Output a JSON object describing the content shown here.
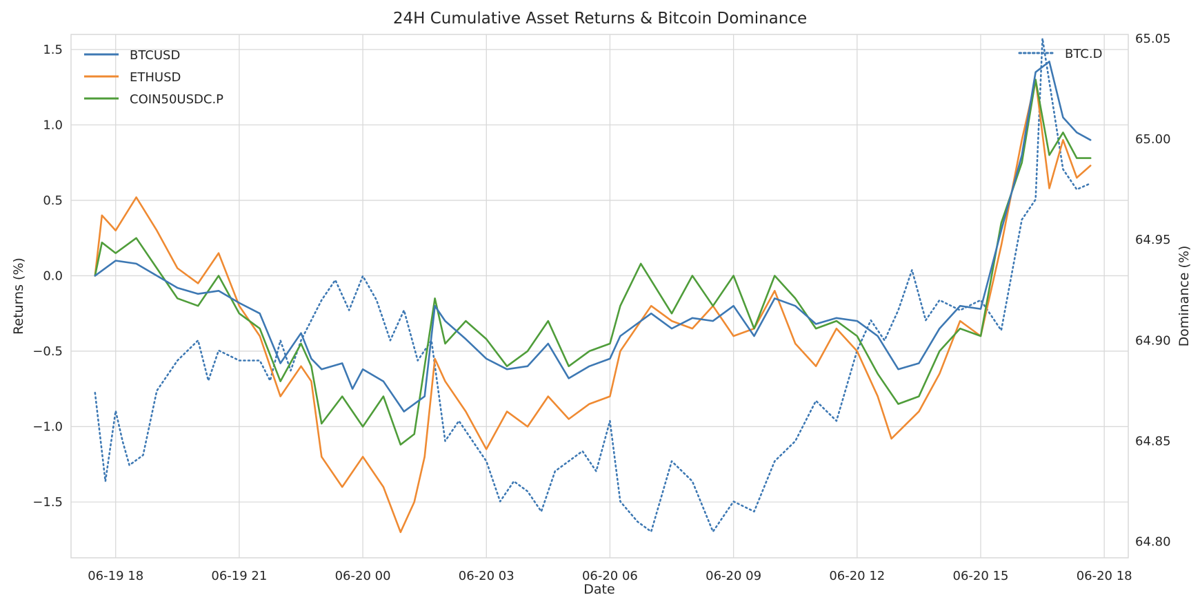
{
  "chart_data": {
    "type": "line",
    "title": "24H Cumulative Asset Returns & Bitcoin Dominance",
    "xlabel": "Date",
    "ylabel": "Returns (%)",
    "y2label": "Dominance (%)",
    "grid": true,
    "x_ticks": [
      "06-19 18",
      "06-19 21",
      "06-20 00",
      "06-20 03",
      "06-20 06",
      "06-20 09",
      "06-20 12",
      "06-20 15",
      "06-20 18"
    ],
    "x_range": [
      "06-19 16:55",
      "06-20 18:35"
    ],
    "ylim": [
      -1.87,
      1.6
    ],
    "y_ticks": [
      -1.5,
      -1.0,
      -0.5,
      0.0,
      0.5,
      1.0,
      1.5
    ],
    "y2lim": [
      64.792,
      65.052
    ],
    "y2_ticks": [
      64.8,
      64.85,
      64.9,
      64.95,
      65.0,
      65.05
    ],
    "legend_left": "top-left",
    "legend_right": "top-right",
    "series": [
      {
        "name": "BTCUSD",
        "axis": "left",
        "style": "solid",
        "color": "#3d78b3",
        "points": [
          [
            "06-19 17:30",
            0.0
          ],
          [
            "06-19 18:00",
            0.1
          ],
          [
            "06-19 18:30",
            0.08
          ],
          [
            "06-19 19:00",
            0.0
          ],
          [
            "06-19 19:30",
            -0.08
          ],
          [
            "06-19 20:00",
            -0.12
          ],
          [
            "06-19 20:30",
            -0.1
          ],
          [
            "06-19 21:00",
            -0.18
          ],
          [
            "06-19 21:30",
            -0.25
          ],
          [
            "06-19 22:00",
            -0.58
          ],
          [
            "06-19 22:30",
            -0.38
          ],
          [
            "06-19 22:45",
            -0.55
          ],
          [
            "06-19 23:00",
            -0.62
          ],
          [
            "06-19 23:30",
            -0.58
          ],
          [
            "06-19 23:45",
            -0.75
          ],
          [
            "06-20 00:00",
            -0.62
          ],
          [
            "06-20 00:30",
            -0.7
          ],
          [
            "06-20 01:00",
            -0.9
          ],
          [
            "06-20 01:30",
            -0.8
          ],
          [
            "06-20 01:45",
            -0.2
          ],
          [
            "06-20 02:00",
            -0.3
          ],
          [
            "06-20 02:30",
            -0.42
          ],
          [
            "06-20 03:00",
            -0.55
          ],
          [
            "06-20 03:30",
            -0.62
          ],
          [
            "06-20 04:00",
            -0.6
          ],
          [
            "06-20 04:30",
            -0.45
          ],
          [
            "06-20 05:00",
            -0.68
          ],
          [
            "06-20 05:30",
            -0.6
          ],
          [
            "06-20 06:00",
            -0.55
          ],
          [
            "06-20 06:15",
            -0.4
          ],
          [
            "06-20 07:00",
            -0.25
          ],
          [
            "06-20 07:30",
            -0.35
          ],
          [
            "06-20 08:00",
            -0.28
          ],
          [
            "06-20 08:30",
            -0.3
          ],
          [
            "06-20 09:00",
            -0.2
          ],
          [
            "06-20 09:30",
            -0.4
          ],
          [
            "06-20 10:00",
            -0.15
          ],
          [
            "06-20 10:30",
            -0.2
          ],
          [
            "06-20 11:00",
            -0.32
          ],
          [
            "06-20 11:30",
            -0.28
          ],
          [
            "06-20 12:00",
            -0.3
          ],
          [
            "06-20 12:30",
            -0.4
          ],
          [
            "06-20 13:00",
            -0.62
          ],
          [
            "06-20 13:30",
            -0.58
          ],
          [
            "06-20 14:00",
            -0.35
          ],
          [
            "06-20 14:30",
            -0.2
          ],
          [
            "06-20 15:00",
            -0.22
          ],
          [
            "06-20 15:30",
            0.3
          ],
          [
            "06-20 16:00",
            0.8
          ],
          [
            "06-20 16:20",
            1.35
          ],
          [
            "06-20 16:40",
            1.42
          ],
          [
            "06-20 17:00",
            1.05
          ],
          [
            "06-20 17:20",
            0.95
          ],
          [
            "06-20 17:40",
            0.9
          ]
        ]
      },
      {
        "name": "ETHUSD",
        "axis": "left",
        "style": "solid",
        "color": "#ef8a32",
        "points": [
          [
            "06-19 17:30",
            0.0
          ],
          [
            "06-19 17:40",
            0.4
          ],
          [
            "06-19 18:00",
            0.3
          ],
          [
            "06-19 18:30",
            0.52
          ],
          [
            "06-19 19:00",
            0.3
          ],
          [
            "06-19 19:30",
            0.05
          ],
          [
            "06-19 20:00",
            -0.05
          ],
          [
            "06-19 20:30",
            0.15
          ],
          [
            "06-19 21:00",
            -0.2
          ],
          [
            "06-19 21:30",
            -0.4
          ],
          [
            "06-19 22:00",
            -0.8
          ],
          [
            "06-19 22:30",
            -0.6
          ],
          [
            "06-19 22:45",
            -0.7
          ],
          [
            "06-19 23:00",
            -1.2
          ],
          [
            "06-19 23:30",
            -1.4
          ],
          [
            "06-20 00:00",
            -1.2
          ],
          [
            "06-20 00:30",
            -1.4
          ],
          [
            "06-20 00:55",
            -1.7
          ],
          [
            "06-20 01:15",
            -1.5
          ],
          [
            "06-20 01:30",
            -1.2
          ],
          [
            "06-20 01:45",
            -0.55
          ],
          [
            "06-20 02:00",
            -0.7
          ],
          [
            "06-20 02:30",
            -0.9
          ],
          [
            "06-20 03:00",
            -1.15
          ],
          [
            "06-20 03:30",
            -0.9
          ],
          [
            "06-20 04:00",
            -1.0
          ],
          [
            "06-20 04:30",
            -0.8
          ],
          [
            "06-20 05:00",
            -0.95
          ],
          [
            "06-20 05:30",
            -0.85
          ],
          [
            "06-20 06:00",
            -0.8
          ],
          [
            "06-20 06:15",
            -0.5
          ],
          [
            "06-20 07:00",
            -0.2
          ],
          [
            "06-20 07:30",
            -0.3
          ],
          [
            "06-20 08:00",
            -0.35
          ],
          [
            "06-20 08:30",
            -0.2
          ],
          [
            "06-20 09:00",
            -0.4
          ],
          [
            "06-20 09:30",
            -0.35
          ],
          [
            "06-20 10:00",
            -0.1
          ],
          [
            "06-20 10:30",
            -0.45
          ],
          [
            "06-20 11:00",
            -0.6
          ],
          [
            "06-20 11:30",
            -0.35
          ],
          [
            "06-20 12:00",
            -0.5
          ],
          [
            "06-20 12:30",
            -0.8
          ],
          [
            "06-20 12:50",
            -1.08
          ],
          [
            "06-20 13:30",
            -0.9
          ],
          [
            "06-20 14:00",
            -0.65
          ],
          [
            "06-20 14:30",
            -0.3
          ],
          [
            "06-20 15:00",
            -0.4
          ],
          [
            "06-20 15:30",
            0.2
          ],
          [
            "06-20 16:00",
            0.9
          ],
          [
            "06-20 16:20",
            1.3
          ],
          [
            "06-20 16:40",
            0.58
          ],
          [
            "06-20 17:00",
            0.9
          ],
          [
            "06-20 17:20",
            0.65
          ],
          [
            "06-20 17:40",
            0.73
          ]
        ]
      },
      {
        "name": "COIN50USDC.P",
        "axis": "left",
        "style": "solid",
        "color": "#4f9d3a",
        "points": [
          [
            "06-19 17:30",
            0.0
          ],
          [
            "06-19 17:40",
            0.22
          ],
          [
            "06-19 18:00",
            0.15
          ],
          [
            "06-19 18:30",
            0.25
          ],
          [
            "06-19 19:00",
            0.05
          ],
          [
            "06-19 19:30",
            -0.15
          ],
          [
            "06-19 20:00",
            -0.2
          ],
          [
            "06-19 20:30",
            0.0
          ],
          [
            "06-19 21:00",
            -0.25
          ],
          [
            "06-19 21:30",
            -0.35
          ],
          [
            "06-19 22:00",
            -0.7
          ],
          [
            "06-19 22:30",
            -0.45
          ],
          [
            "06-19 22:45",
            -0.6
          ],
          [
            "06-19 23:00",
            -0.98
          ],
          [
            "06-19 23:30",
            -0.8
          ],
          [
            "06-20 00:00",
            -1.0
          ],
          [
            "06-20 00:30",
            -0.8
          ],
          [
            "06-20 00:55",
            -1.12
          ],
          [
            "06-20 01:15",
            -1.05
          ],
          [
            "06-20 01:45",
            -0.15
          ],
          [
            "06-20 02:00",
            -0.45
          ],
          [
            "06-20 02:30",
            -0.3
          ],
          [
            "06-20 03:00",
            -0.42
          ],
          [
            "06-20 03:30",
            -0.6
          ],
          [
            "06-20 04:00",
            -0.5
          ],
          [
            "06-20 04:30",
            -0.3
          ],
          [
            "06-20 05:00",
            -0.6
          ],
          [
            "06-20 05:30",
            -0.5
          ],
          [
            "06-20 06:00",
            -0.45
          ],
          [
            "06-20 06:15",
            -0.2
          ],
          [
            "06-20 06:45",
            0.08
          ],
          [
            "06-20 07:30",
            -0.25
          ],
          [
            "06-20 08:00",
            0.0
          ],
          [
            "06-20 08:30",
            -0.2
          ],
          [
            "06-20 09:00",
            0.0
          ],
          [
            "06-20 09:30",
            -0.35
          ],
          [
            "06-20 10:00",
            0.0
          ],
          [
            "06-20 10:30",
            -0.15
          ],
          [
            "06-20 11:00",
            -0.35
          ],
          [
            "06-20 11:30",
            -0.3
          ],
          [
            "06-20 12:00",
            -0.4
          ],
          [
            "06-20 12:30",
            -0.65
          ],
          [
            "06-20 13:00",
            -0.85
          ],
          [
            "06-20 13:30",
            -0.8
          ],
          [
            "06-20 14:00",
            -0.5
          ],
          [
            "06-20 14:30",
            -0.35
          ],
          [
            "06-20 15:00",
            -0.4
          ],
          [
            "06-20 15:30",
            0.35
          ],
          [
            "06-20 16:00",
            0.75
          ],
          [
            "06-20 16:20",
            1.3
          ],
          [
            "06-20 16:40",
            0.8
          ],
          [
            "06-20 17:00",
            0.95
          ],
          [
            "06-20 17:20",
            0.78
          ],
          [
            "06-20 17:40",
            0.78
          ]
        ]
      },
      {
        "name": "BTC.D",
        "axis": "right",
        "style": "dotted",
        "color": "#3d78b3",
        "points": [
          [
            "06-19 17:30",
            64.874
          ],
          [
            "06-19 17:45",
            64.83
          ],
          [
            "06-19 18:00",
            64.865
          ],
          [
            "06-19 18:10",
            64.85
          ],
          [
            "06-19 18:20",
            64.838
          ],
          [
            "06-19 18:40",
            64.843
          ],
          [
            "06-19 19:00",
            64.875
          ],
          [
            "06-19 19:30",
            64.89
          ],
          [
            "06-19 20:00",
            64.9
          ],
          [
            "06-19 20:15",
            64.88
          ],
          [
            "06-19 20:30",
            64.895
          ],
          [
            "06-19 21:00",
            64.89
          ],
          [
            "06-19 21:30",
            64.89
          ],
          [
            "06-19 21:45",
            64.88
          ],
          [
            "06-19 22:00",
            64.9
          ],
          [
            "06-19 22:15",
            64.885
          ],
          [
            "06-19 22:30",
            64.9
          ],
          [
            "06-19 23:00",
            64.92
          ],
          [
            "06-19 23:20",
            64.93
          ],
          [
            "06-19 23:40",
            64.915
          ],
          [
            "06-20 00:00",
            64.932
          ],
          [
            "06-20 00:20",
            64.92
          ],
          [
            "06-20 00:40",
            64.9
          ],
          [
            "06-20 01:00",
            64.915
          ],
          [
            "06-20 01:20",
            64.89
          ],
          [
            "06-20 01:40",
            64.9
          ],
          [
            "06-20 02:00",
            64.85
          ],
          [
            "06-20 02:20",
            64.86
          ],
          [
            "06-20 02:40",
            64.85
          ],
          [
            "06-20 03:00",
            64.84
          ],
          [
            "06-20 03:20",
            64.82
          ],
          [
            "06-20 03:40",
            64.83
          ],
          [
            "06-20 04:00",
            64.825
          ],
          [
            "06-20 04:20",
            64.815
          ],
          [
            "06-20 04:40",
            64.835
          ],
          [
            "06-20 05:00",
            64.84
          ],
          [
            "06-20 05:20",
            64.845
          ],
          [
            "06-20 05:40",
            64.835
          ],
          [
            "06-20 06:00",
            64.86
          ],
          [
            "06-20 06:15",
            64.82
          ],
          [
            "06-20 06:40",
            64.81
          ],
          [
            "06-20 07:00",
            64.805
          ],
          [
            "06-20 07:30",
            64.84
          ],
          [
            "06-20 08:00",
            64.83
          ],
          [
            "06-20 08:30",
            64.805
          ],
          [
            "06-20 09:00",
            64.82
          ],
          [
            "06-20 09:30",
            64.815
          ],
          [
            "06-20 10:00",
            64.84
          ],
          [
            "06-20 10:30",
            64.85
          ],
          [
            "06-20 11:00",
            64.87
          ],
          [
            "06-20 11:30",
            64.86
          ],
          [
            "06-20 12:00",
            64.895
          ],
          [
            "06-20 12:20",
            64.91
          ],
          [
            "06-20 12:40",
            64.9
          ],
          [
            "06-20 13:00",
            64.915
          ],
          [
            "06-20 13:20",
            64.935
          ],
          [
            "06-20 13:40",
            64.91
          ],
          [
            "06-20 14:00",
            64.92
          ],
          [
            "06-20 14:30",
            64.915
          ],
          [
            "06-20 15:00",
            64.92
          ],
          [
            "06-20 15:30",
            64.905
          ],
          [
            "06-20 16:00",
            64.96
          ],
          [
            "06-20 16:20",
            64.97
          ],
          [
            "06-20 16:30",
            65.05
          ],
          [
            "06-20 17:00",
            64.985
          ],
          [
            "06-20 17:20",
            64.975
          ],
          [
            "06-20 17:40",
            64.978
          ]
        ]
      }
    ]
  }
}
